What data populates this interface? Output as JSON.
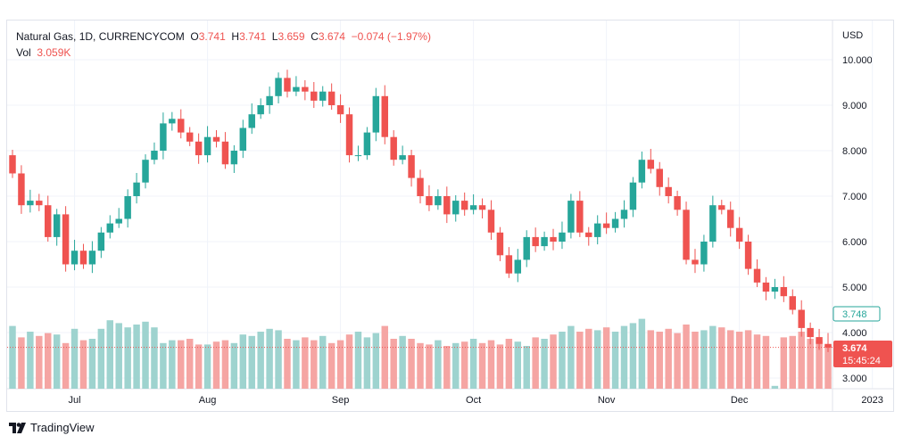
{
  "header": {
    "symbol": "Natural Gas, 1D, CURRENCYCOM",
    "o_label": "O",
    "o": "3.741",
    "h_label": "H",
    "h": "3.741",
    "l_label": "L",
    "l": "3.659",
    "c_label": "C",
    "c": "3.674",
    "change": "−0.074 (−1.97%)",
    "vol_label": "Vol",
    "vol": "3.059K"
  },
  "currency": "USD",
  "brand": "TradingView",
  "price_labels": {
    "prev": "3.748",
    "last": "3.674",
    "countdown": "15:45:24"
  },
  "colors": {
    "up": "#26a69a",
    "down": "#ef5350",
    "up_vol": "#9ed3cf",
    "down_vol": "#f5a5a3",
    "grid": "#f0f3fa"
  },
  "chart_data": {
    "type": "candlestick",
    "title": "Natural Gas, 1D, CURRENCYCOM",
    "ylim": [
      2.8,
      10.9
    ],
    "y_ticks": [
      10,
      9,
      8,
      7,
      6,
      5,
      4,
      3
    ],
    "y_tick_labels": [
      "10.000",
      "9.000",
      "8.000",
      "7.000",
      "6.000",
      "5.000",
      "4.000",
      "3.000"
    ],
    "x_ticks": [
      {
        "label": "Jul",
        "index": 7
      },
      {
        "label": "Aug",
        "index": 22
      },
      {
        "label": "Sep",
        "index": 37
      },
      {
        "label": "Oct",
        "index": 52
      },
      {
        "label": "Nov",
        "index": 67
      },
      {
        "label": "Dec",
        "index": 82
      },
      {
        "label": "2023",
        "index": 97
      }
    ],
    "close": [
      7.5,
      6.8,
      6.9,
      6.8,
      6.1,
      6.6,
      5.5,
      5.8,
      5.5,
      5.8,
      6.2,
      6.4,
      6.5,
      7.0,
      7.3,
      7.8,
      8.0,
      8.6,
      8.7,
      8.4,
      8.2,
      7.9,
      8.3,
      8.2,
      7.7,
      8.0,
      8.5,
      8.8,
      9.0,
      9.2,
      9.6,
      9.3,
      9.4,
      9.3,
      9.1,
      9.3,
      9.0,
      8.8,
      7.9,
      7.9,
      8.4,
      9.2,
      8.3,
      7.8,
      7.9,
      7.4,
      7.0,
      6.8,
      7.0,
      6.6,
      6.9,
      6.7,
      6.8,
      6.7,
      6.2,
      5.7,
      5.3,
      5.6,
      6.1,
      5.9,
      6.1,
      6.0,
      6.2,
      6.9,
      6.2,
      6.1,
      6.4,
      6.3,
      6.5,
      6.7,
      7.3,
      7.8,
      7.6,
      7.2,
      7.0,
      6.7,
      5.6,
      5.5,
      6.0,
      6.8,
      6.7,
      6.3,
      6.0,
      5.4,
      5.1,
      4.9,
      5.0,
      4.8,
      4.5,
      4.1,
      3.9,
      3.75,
      3.67
    ],
    "volume_k": [
      4.4,
      3.6,
      4.0,
      3.7,
      3.9,
      3.8,
      3.2,
      4.2,
      3.4,
      3.5,
      4.2,
      4.8,
      4.6,
      4.3,
      4.5,
      4.7,
      4.3,
      3.2,
      3.4,
      3.4,
      3.5,
      3.1,
      3.1,
      3.3,
      3.4,
      3.2,
      3.8,
      3.7,
      4.0,
      4.2,
      4.1,
      3.5,
      3.4,
      3.6,
      3.4,
      3.7,
      3.2,
      3.4,
      3.8,
      4.0,
      3.6,
      3.9,
      4.4,
      3.5,
      3.7,
      3.5,
      3.2,
      3.1,
      3.4,
      3.0,
      3.2,
      3.3,
      3.5,
      3.2,
      3.4,
      3.1,
      3.5,
      3.3,
      3.0,
      3.6,
      3.5,
      3.8,
      4.0,
      4.4,
      4.0,
      4.2,
      4.1,
      4.3,
      4.0,
      4.4,
      4.6,
      4.9,
      4.1,
      4.0,
      4.2,
      3.9,
      4.5,
      4.0,
      4.1,
      4.4,
      4.3,
      4.1,
      4.0,
      4.1,
      3.8,
      3.7,
      0.2,
      3.6,
      3.7,
      4.0,
      3.5,
      3.4,
      3.06
    ]
  }
}
